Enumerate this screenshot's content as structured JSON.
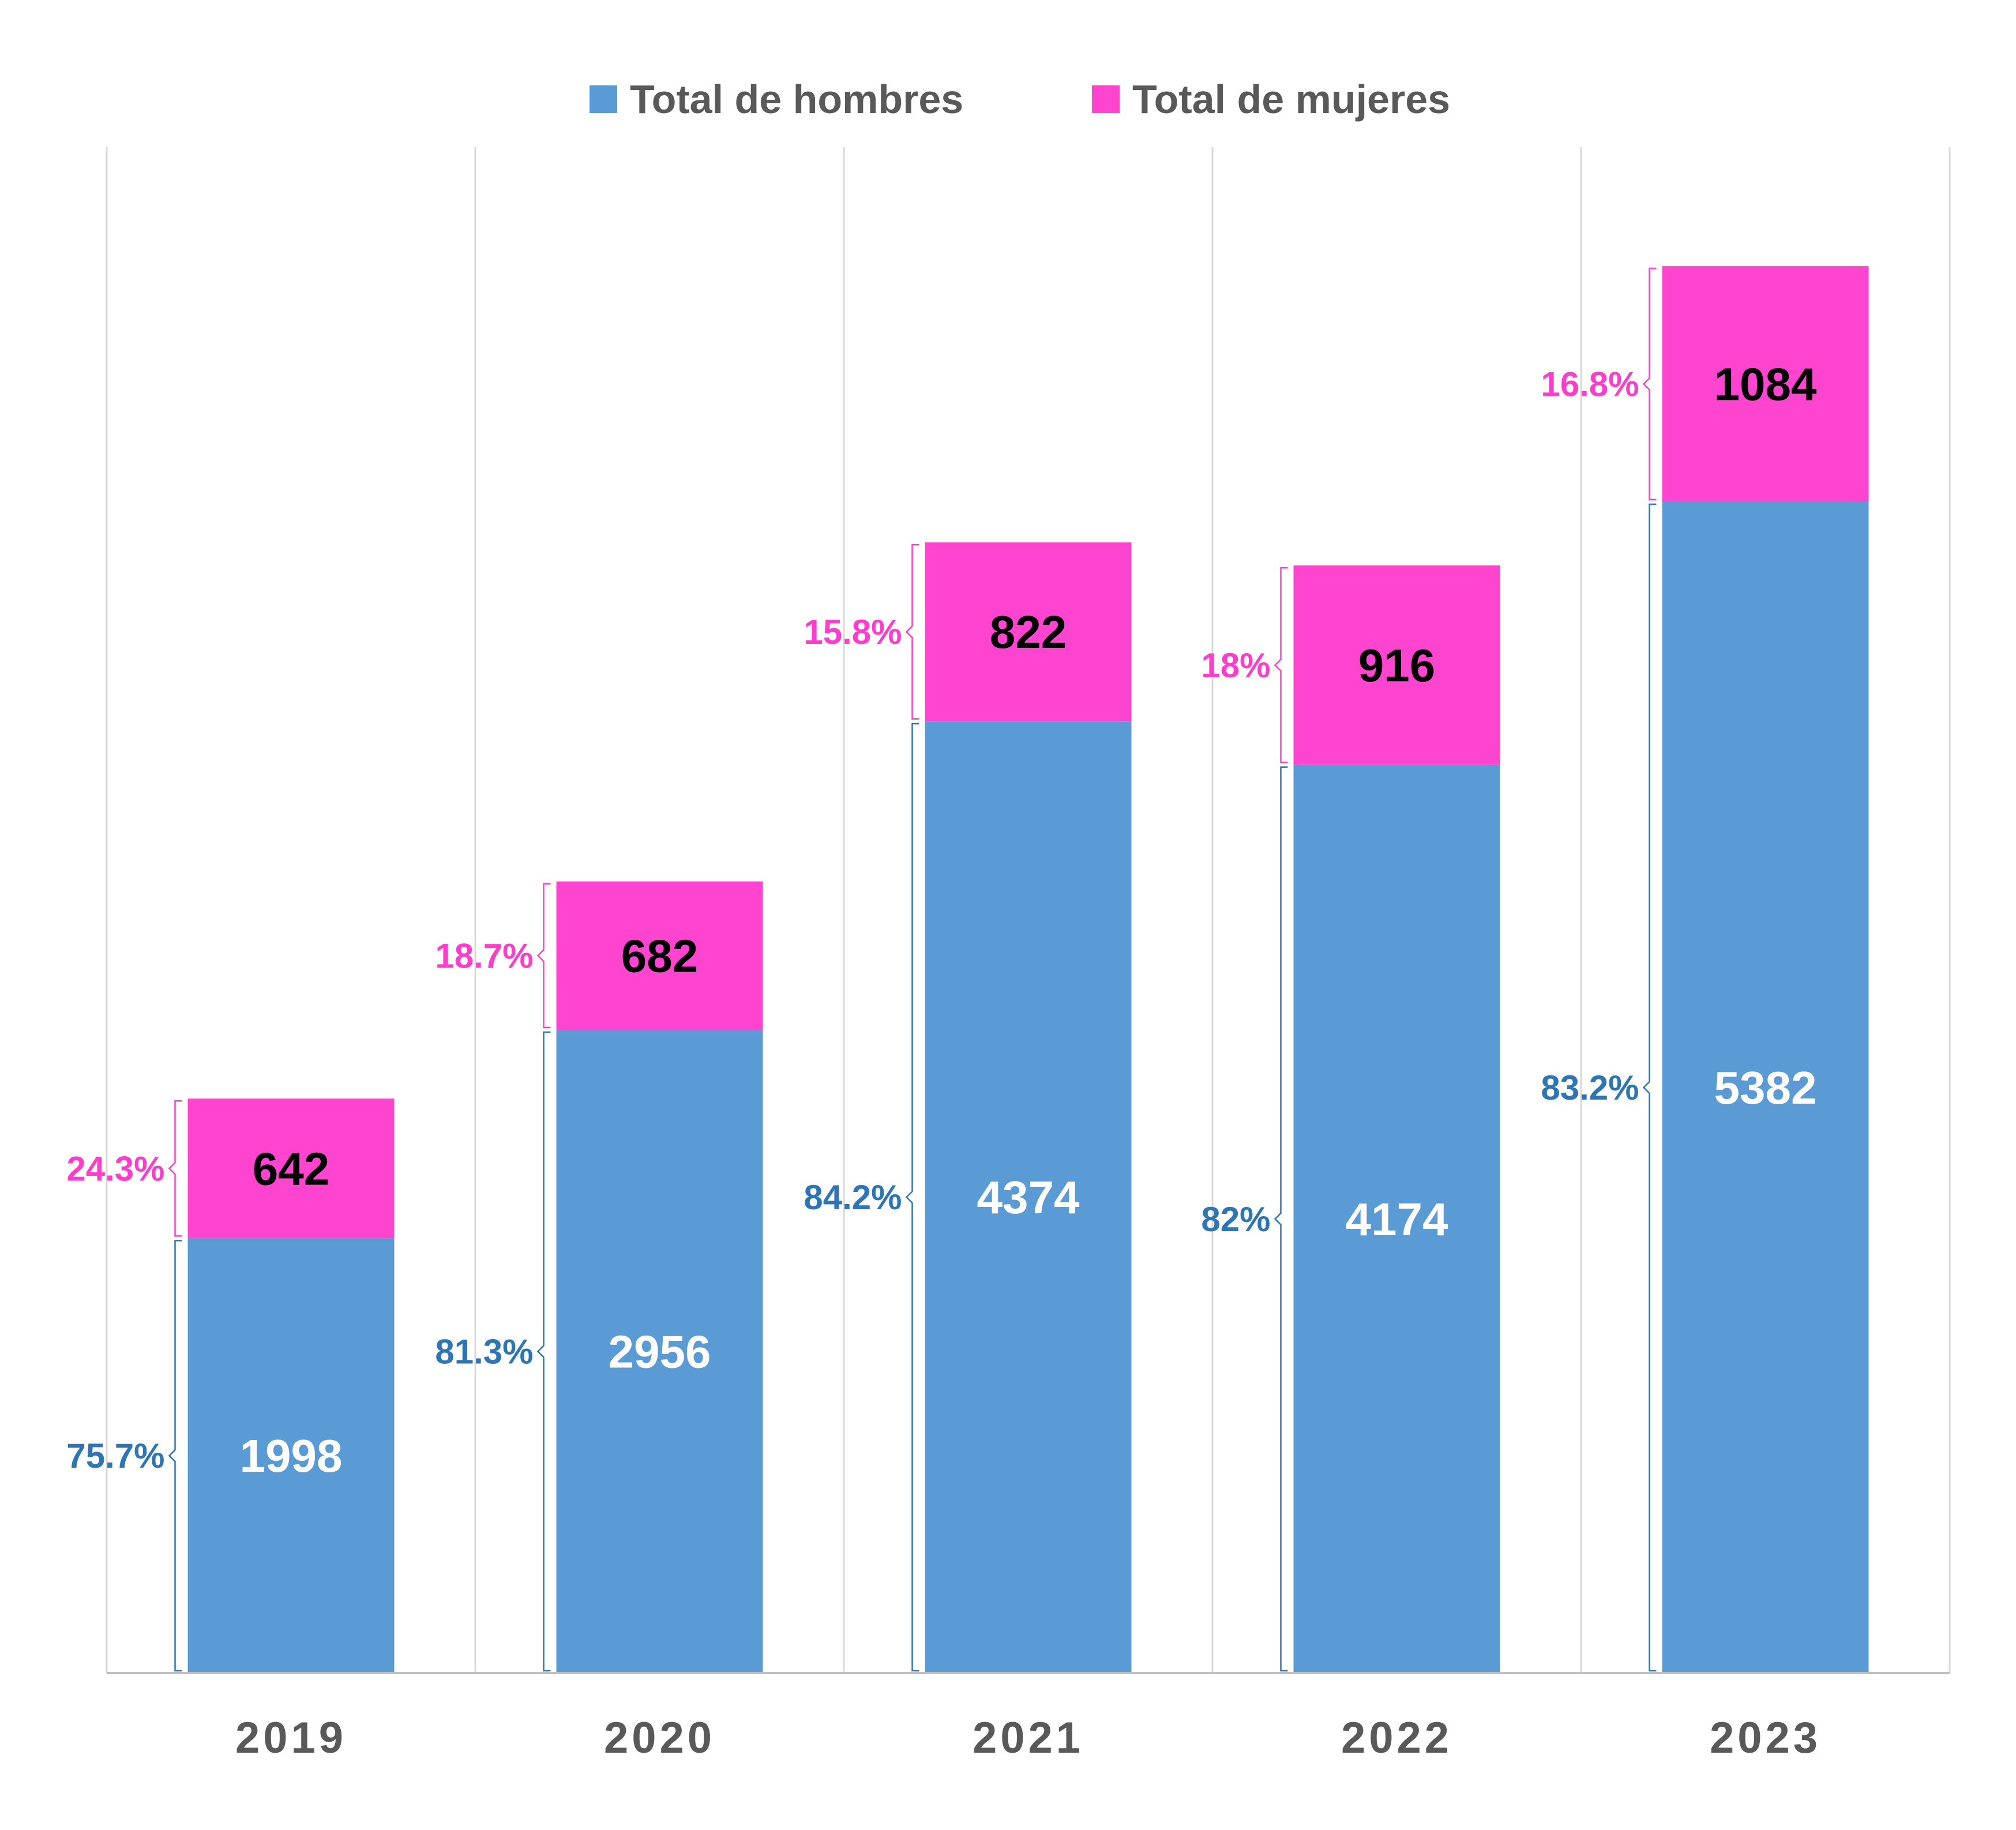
{
  "chart_data": {
    "type": "bar",
    "stacked": true,
    "categories": [
      "2019",
      "2020",
      "2021",
      "2022",
      "2023"
    ],
    "series": [
      {
        "name": "Total de hombres",
        "values": [
          1998,
          2956,
          4374,
          4174,
          5382
        ],
        "percent_labels": [
          "75.7%",
          "81.3%",
          "84.2%",
          "82%",
          "83.2%"
        ],
        "color": "#5b9bd5",
        "value_label_color": "#ffffff",
        "percent_label_color": "#2e75b6"
      },
      {
        "name": "Total de mujeres",
        "values": [
          642,
          682,
          822,
          916,
          1084
        ],
        "percent_labels": [
          "24.3%",
          "18.7%",
          "15.8%",
          "18%",
          "16.8%"
        ],
        "color": "#ff45d0",
        "value_label_color": "#000000",
        "percent_label_color": "#ff3dcc"
      }
    ],
    "ylim": [
      0,
      7000
    ],
    "grid": "vertical",
    "legend": "top"
  },
  "colors": {
    "gridline": "#d9d9d9",
    "axis": "#bfbfbf",
    "text": "#595959"
  }
}
